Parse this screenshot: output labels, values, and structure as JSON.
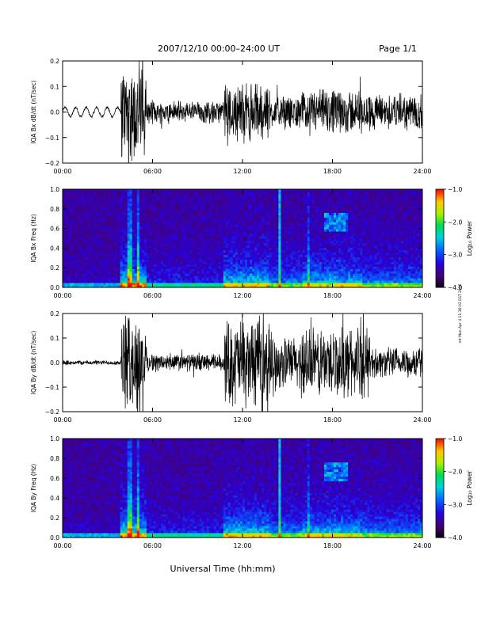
{
  "header": {
    "title": "2007/12/10  00:00–24:00 UT",
    "page": "Page 1/1"
  },
  "footer": {
    "xlabel": "Universal Time (hh:mm)",
    "side_note": "mt Mon Apr  4 11:36:02 EST 2016"
  },
  "colorbar_label": "Log₁₀ Power",
  "chart_data": [
    {
      "type": "line",
      "ylabel": "IQA Bx dB/dt (nT/sec)",
      "x_ticks": [
        "00:00",
        "06:00",
        "12:00",
        "18:00",
        "24:00"
      ],
      "y_ticks": [
        "0.2",
        "0.1",
        "0.0",
        "−0.1",
        "−0.2"
      ],
      "xlim": [
        0,
        24
      ],
      "ylim": [
        -0.2,
        0.2
      ],
      "series": [
        {
          "values": [],
          "activity_segments": [
            {
              "start": 0.0,
              "end": 3.9,
              "amp": 0.02,
              "note": "quiet, slow oscillation"
            },
            {
              "start": 3.9,
              "end": 5.6,
              "amp": 0.22,
              "note": "strong burst"
            },
            {
              "start": 5.6,
              "end": 10.8,
              "amp": 0.05
            },
            {
              "start": 10.8,
              "end": 13.8,
              "amp": 0.13
            },
            {
              "start": 13.8,
              "end": 16.0,
              "amp": 0.07
            },
            {
              "start": 16.0,
              "end": 20.0,
              "amp": 0.1
            },
            {
              "start": 20.0,
              "end": 24.0,
              "amp": 0.08
            }
          ]
        }
      ]
    },
    {
      "type": "heatmap",
      "ylabel": "IQA Bx Freq (Hz)",
      "x_ticks": [
        "00:00",
        "06:00",
        "12:00",
        "18:00",
        "24:00"
      ],
      "y_ticks": [
        "1.0",
        "0.8",
        "0.6",
        "0.4",
        "0.2",
        "0.0"
      ],
      "xlim": [
        0,
        24
      ],
      "ylim": [
        0,
        1
      ],
      "colorbar": {
        "ticks": [
          "−1.0",
          "−2.0",
          "−3.0",
          "−4.0"
        ],
        "range": [
          -4.0,
          -1.0
        ]
      },
      "features": [
        {
          "time": 4.5,
          "note": "broadband vertical spike"
        },
        {
          "time": 5.0,
          "note": "broadband vertical spike"
        },
        {
          "time": 14.5,
          "note": "narrow vertical line"
        },
        {
          "time": 16.4,
          "note": "vertical line"
        },
        {
          "time_range": [
            17.5,
            19.0
          ],
          "freq_range": [
            0.6,
            0.75
          ],
          "note": "Pc1 emission band"
        }
      ]
    },
    {
      "type": "line",
      "ylabel": "IQA By dB/dt (nT/sec)",
      "x_ticks": [
        "00:00",
        "06:00",
        "12:00",
        "18:00",
        "24:00"
      ],
      "y_ticks": [
        "0.2",
        "0.1",
        "0.0",
        "−0.1",
        "−0.2"
      ],
      "xlim": [
        0,
        24
      ],
      "ylim": [
        -0.2,
        0.2
      ],
      "series": [
        {
          "values": [],
          "activity_segments": [
            {
              "start": 0.0,
              "end": 3.9,
              "amp": 0.01
            },
            {
              "start": 3.9,
              "end": 5.6,
              "amp": 0.22
            },
            {
              "start": 5.6,
              "end": 10.8,
              "amp": 0.04
            },
            {
              "start": 10.8,
              "end": 13.8,
              "amp": 0.2
            },
            {
              "start": 13.8,
              "end": 16.0,
              "amp": 0.12
            },
            {
              "start": 16.0,
              "end": 20.5,
              "amp": 0.16
            },
            {
              "start": 20.5,
              "end": 24.0,
              "amp": 0.07
            }
          ]
        }
      ]
    },
    {
      "type": "heatmap",
      "ylabel": "IQA By Freq (Hz)",
      "x_ticks": [
        "00:00",
        "06:00",
        "12:00",
        "18:00",
        "24:00"
      ],
      "y_ticks": [
        "1.0",
        "0.8",
        "0.6",
        "0.4",
        "0.2",
        "0.0"
      ],
      "xlim": [
        0,
        24
      ],
      "ylim": [
        0,
        1
      ],
      "colorbar": {
        "ticks": [
          "−1.0",
          "−2.0",
          "−3.0",
          "−4.0"
        ],
        "range": [
          -4.0,
          -1.0
        ]
      },
      "features": [
        {
          "time": 4.5,
          "note": "broadband vertical spike"
        },
        {
          "time": 14.5,
          "note": "narrow vertical line"
        },
        {
          "time_range": [
            17.5,
            19.0
          ],
          "freq_range": [
            0.6,
            0.75
          ],
          "note": "Pc1 emission band"
        }
      ]
    }
  ]
}
